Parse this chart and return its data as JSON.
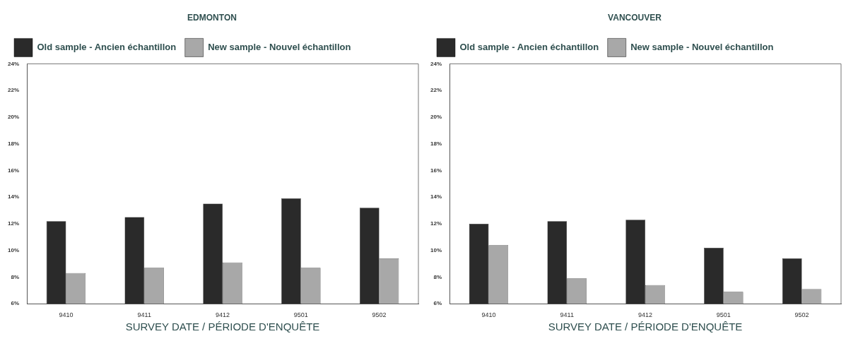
{
  "chart_data": [
    {
      "type": "bar",
      "title": "EDMONTON",
      "xlabel": "SURVEY DATE / PÉRIODE D'ENQUÊTE",
      "categories": [
        "9410",
        "9411",
        "9412",
        "9501",
        "9502"
      ],
      "series": [
        {
          "name": "Old sample - Ancien échantillon",
          "color": "#2a2a2a",
          "values": [
            12.2,
            12.5,
            13.5,
            13.9,
            13.2
          ]
        },
        {
          "name": "New sample - Nouvel échantillon",
          "color": "#a8a8a8",
          "values": [
            8.3,
            8.7,
            9.1,
            8.7,
            9.4
          ]
        }
      ],
      "ylim": [
        6,
        24
      ],
      "yticks": [
        {
          "value": 6,
          "label": "6%"
        },
        {
          "value": 8,
          "label": "8%"
        },
        {
          "value": 10,
          "label": "10%"
        },
        {
          "value": 12,
          "label": "12%"
        },
        {
          "value": 14,
          "label": "14%"
        },
        {
          "value": 16,
          "label": "16%"
        },
        {
          "value": 18,
          "label": "18%"
        },
        {
          "value": 20,
          "label": "20%"
        },
        {
          "value": 22,
          "label": "22%"
        },
        {
          "value": 24,
          "label": "24%"
        }
      ],
      "grid": false,
      "legend": "top left"
    },
    {
      "type": "bar",
      "title": "VANCOUVER",
      "xlabel": "SURVEY DATE / PÉRIODE D'ENQUÊTE",
      "categories": [
        "9410",
        "9411",
        "9412",
        "9501",
        "9502"
      ],
      "series": [
        {
          "name": "Old sample - Ancien échantillon",
          "color": "#2a2a2a",
          "values": [
            12.0,
            12.2,
            12.3,
            10.2,
            9.4
          ]
        },
        {
          "name": "New sample - Nouvel échantillon",
          "color": "#a8a8a8",
          "values": [
            10.4,
            7.9,
            7.4,
            6.9,
            7.1
          ]
        }
      ],
      "ylim": [
        6,
        24
      ],
      "yticks": [
        {
          "value": 6,
          "label": "6%"
        },
        {
          "value": 8,
          "label": "8%"
        },
        {
          "value": 10,
          "label": "10%"
        },
        {
          "value": 12,
          "label": "12%"
        },
        {
          "value": 14,
          "label": "14%"
        },
        {
          "value": 16,
          "label": "16%"
        },
        {
          "value": 18,
          "label": "18%"
        },
        {
          "value": 20,
          "label": "20%"
        },
        {
          "value": 22,
          "label": "22%"
        },
        {
          "value": 24,
          "label": "24%"
        }
      ],
      "grid": false,
      "legend": "top left"
    }
  ]
}
